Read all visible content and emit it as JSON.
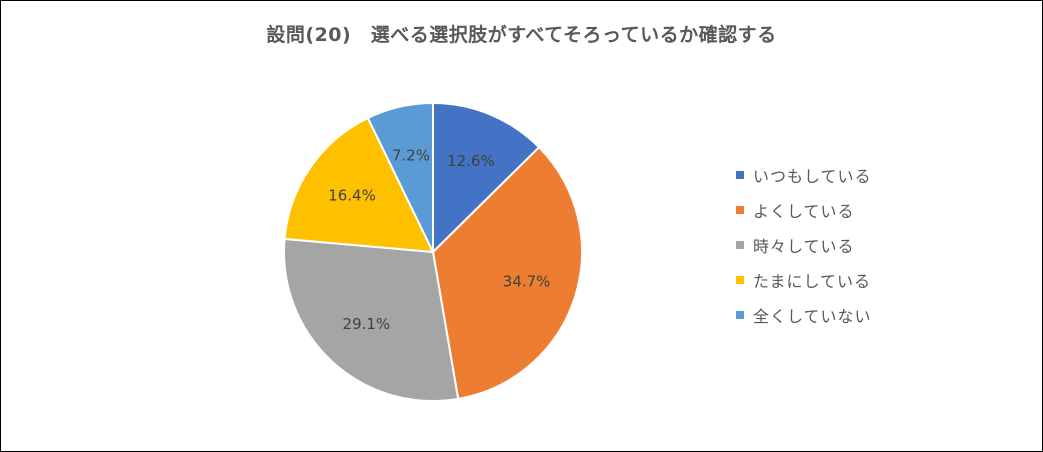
{
  "chart_data": {
    "type": "pie",
    "title": "設問(20)　選べる選択肢がすべてそろっているか確認する",
    "categories": [
      "いつもしている",
      "よくしている",
      "時々している",
      "たまにしている",
      "全くしていない"
    ],
    "values": [
      12.6,
      34.7,
      29.1,
      16.4,
      7.2
    ],
    "data_labels": [
      "12.6%",
      "34.7%",
      "29.1%",
      "16.4%",
      "7.2%"
    ],
    "colors": [
      "#4472C4",
      "#ED7D31",
      "#A5A5A5",
      "#FFC000",
      "#5B9BD5"
    ],
    "legend": "right"
  }
}
